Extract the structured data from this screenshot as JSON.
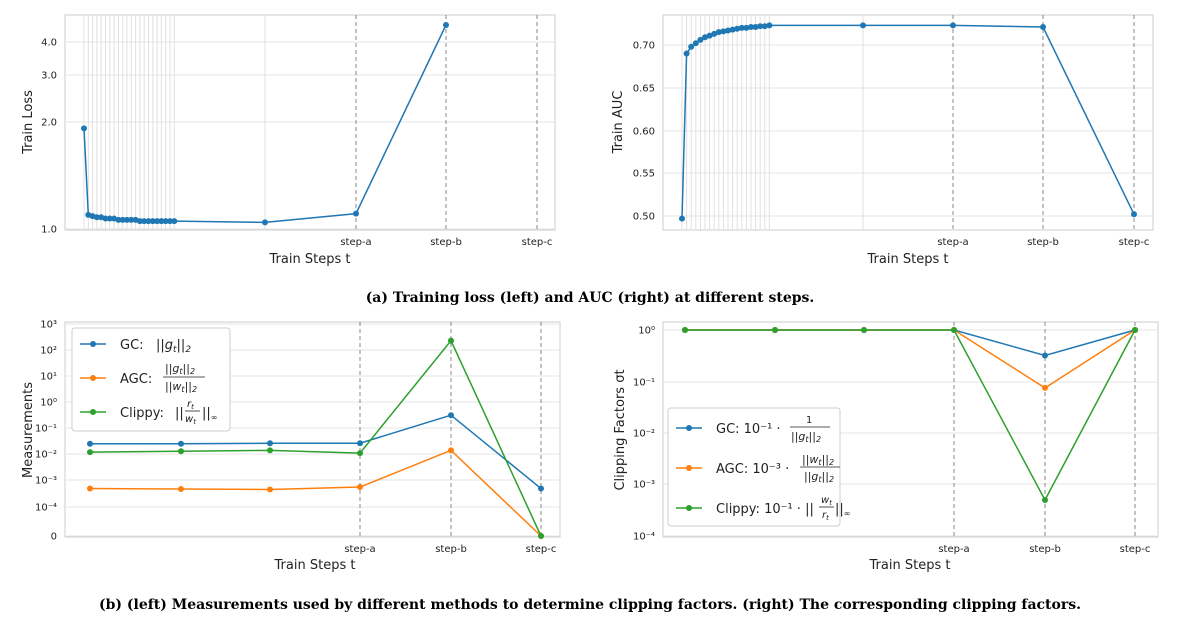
{
  "captions": {
    "a": "(a) Training loss (left) and AUC (right) at different steps.",
    "b": "(b) (left) Measurements used by different methods to determine clipping factors. (right) The corresponding clipping factors."
  },
  "colors": {
    "blue": "#1f77b4",
    "orange": "#ff7f0e",
    "green": "#2ca02c"
  },
  "chart_data": [
    {
      "id": "train-loss",
      "type": "line",
      "xlabel": "Train Steps t",
      "ylabel": "Train Loss",
      "y_ticks": [
        "1.0",
        "2.0",
        "3.0",
        "4.0"
      ],
      "x_ticks": [
        "step-a",
        "step-b",
        "step-c"
      ],
      "series": [
        {
          "color": "blue",
          "points": [
            2.1,
            1.11,
            1.1,
            1.09,
            1.09,
            1.08,
            1.08,
            1.08,
            1.07,
            1.07,
            1.07,
            1.07,
            1.07,
            1.06,
            1.06,
            1.06,
            1.06,
            1.06,
            1.06,
            1.06,
            1.06,
            1.06,
            1.05,
            1.12,
            4.5
          ]
        }
      ]
    },
    {
      "id": "train-auc",
      "type": "line",
      "xlabel": "Train Steps t",
      "ylabel": "Train AUC",
      "y_ticks": [
        "0.50",
        "0.55",
        "0.60",
        "0.65",
        "0.70"
      ],
      "x_ticks": [
        "step-a",
        "step-b",
        "step-c"
      ],
      "series": [
        {
          "color": "blue",
          "points": [
            0.497,
            0.69,
            0.698,
            0.702,
            0.706,
            0.709,
            0.711,
            0.713,
            0.715,
            0.716,
            0.717,
            0.718,
            0.719,
            0.72,
            0.72,
            0.721,
            0.721,
            0.722,
            0.722,
            0.723,
            0.723,
            0.723,
            0.721,
            0.502
          ]
        }
      ]
    },
    {
      "id": "measurements",
      "type": "line",
      "xlabel": "Train Steps t",
      "ylabel": "Measurements",
      "y_ticks": [
        "0",
        "10⁻⁴",
        "10⁻³",
        "10⁻²",
        "10⁻¹",
        "10⁰",
        "10¹",
        "10²",
        "10³"
      ],
      "x_ticks": [
        "step-a",
        "step-b",
        "step-c"
      ],
      "legend": [
        {
          "label": "GC:",
          "color": "blue"
        },
        {
          "label": "AGC:",
          "color": "orange"
        },
        {
          "label": "Clippy:",
          "color": "green"
        }
      ],
      "series": [
        {
          "name": "GC",
          "color": "blue",
          "values": [
            0.025,
            0.025,
            0.026,
            0.026,
            0.3,
            0.0005
          ]
        },
        {
          "name": "AGC",
          "color": "orange",
          "values": [
            0.0005,
            0.00048,
            0.00046,
            0.00057,
            0.014,
            0
          ]
        },
        {
          "name": "Clippy",
          "color": "green",
          "values": [
            0.012,
            0.013,
            0.014,
            0.011,
            200,
            0
          ]
        }
      ]
    },
    {
      "id": "clipping-factors",
      "type": "line",
      "xlabel": "Train Steps t",
      "ylabel": "Clipping Factors σt",
      "y_ticks": [
        "10⁻⁴",
        "10⁻³",
        "10⁻²",
        "10⁻¹",
        "10⁰"
      ],
      "x_ticks": [
        "step-a",
        "step-b",
        "step-c"
      ],
      "legend": [
        {
          "label": "GC: 10⁻¹ ·",
          "color": "blue"
        },
        {
          "label": "AGC: 10⁻³ ·",
          "color": "orange"
        },
        {
          "label": "Clippy: 10⁻¹ · ||",
          "color": "green"
        }
      ],
      "series": [
        {
          "name": "GC",
          "color": "blue",
          "values": [
            1,
            1,
            1,
            1,
            0.32,
            1
          ]
        },
        {
          "name": "AGC",
          "color": "orange",
          "values": [
            1,
            1,
            1,
            1,
            0.075,
            1
          ]
        },
        {
          "name": "Clippy",
          "color": "green",
          "values": [
            1,
            1,
            1,
            1,
            0.0005,
            1
          ]
        }
      ]
    }
  ]
}
